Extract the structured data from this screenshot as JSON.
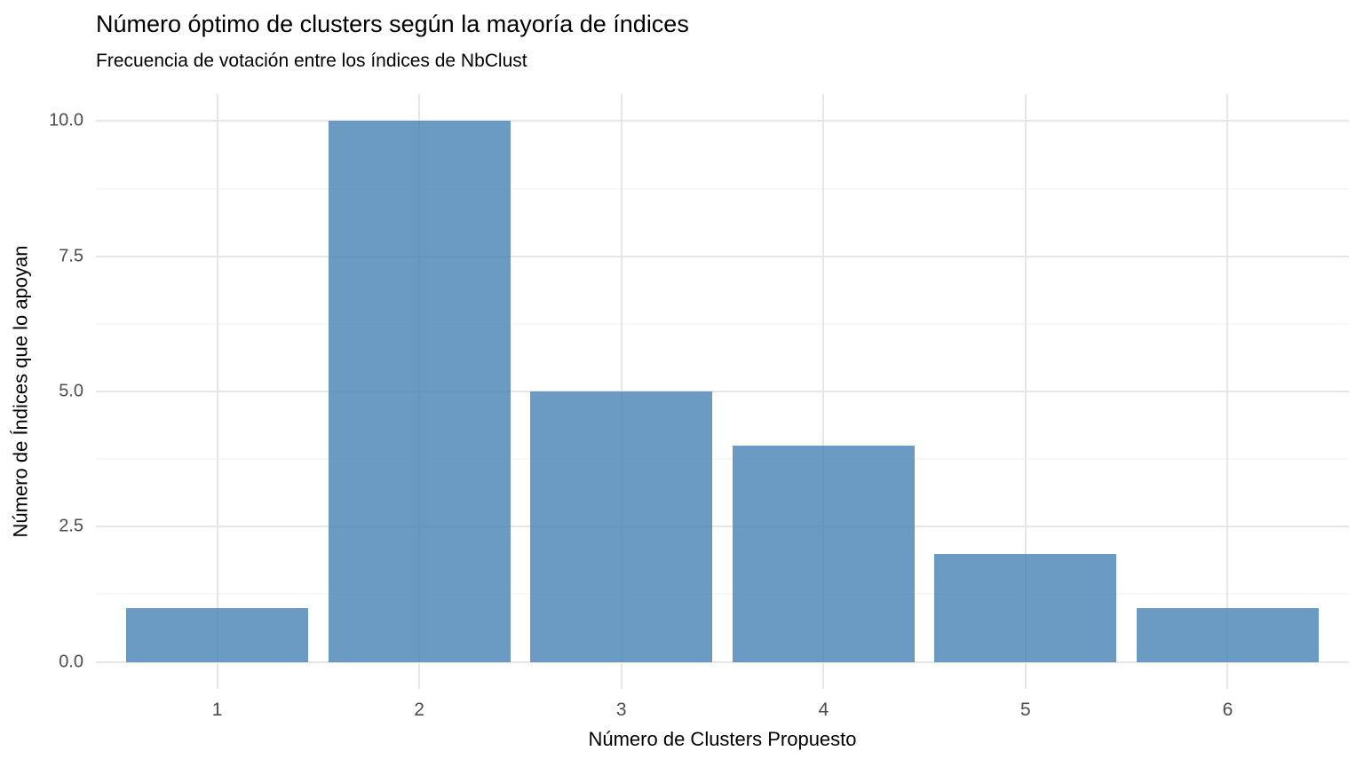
{
  "chart_data": {
    "type": "bar",
    "title": "Número óptimo de clusters según la mayoría de índices",
    "subtitle": "Frecuencia de votación entre los índices de NbClust",
    "xlabel": "Número de Clusters Propuesto",
    "ylabel": "Número de Índices que lo apoyan",
    "categories": [
      "1",
      "2",
      "3",
      "4",
      "5",
      "6"
    ],
    "values": [
      1,
      10,
      5,
      4,
      2,
      1
    ],
    "y_tick_labels": [
      "0.0",
      "2.5",
      "5.0",
      "7.5",
      "10.0"
    ],
    "y_major_ticks": [
      0,
      2.5,
      5,
      7.5,
      10
    ],
    "y_minor_ticks": [
      1.25,
      3.75,
      6.25,
      8.75
    ],
    "ylim": [
      -0.5,
      10.5
    ],
    "xlim_units": [
      0.4,
      6.6
    ],
    "bar_width_units": 0.9,
    "bar_color": "#4682B4",
    "bar_alpha": 0.8,
    "bar_color_rendered": "#6B9BC3",
    "grid": "on",
    "grid_major_color": "#E6E6E6",
    "grid_minor_color": "#EFEFEF",
    "tick_label_color": "#4D4D4D",
    "background": "#FFFFFF",
    "legend_position": "none"
  }
}
